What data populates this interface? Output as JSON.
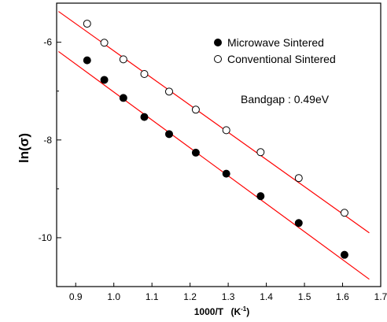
{
  "chart_data": {
    "type": "scatter",
    "xlabel": "1000/T",
    "xlabel_unit_base": "(K",
    "xlabel_unit_sup": "-1",
    "xlabel_unit_close": ")",
    "ylabel": "ln(σ)",
    "xlim": [
      0.85,
      1.7
    ],
    "ylim": [
      -11.0,
      -5.2
    ],
    "x_ticks": [
      0.9,
      1.0,
      1.1,
      1.2,
      1.3,
      1.4,
      1.5,
      1.6,
      1.7
    ],
    "x_tick_labels": [
      "0.9",
      "1.0",
      "1.1",
      "1.2",
      "1.3",
      "1.4",
      "1.5",
      "1.6",
      "1.7"
    ],
    "y_ticks": [
      -10,
      -8,
      -6
    ],
    "y_tick_labels": [
      "-10",
      "-8",
      "-6"
    ],
    "y_minor_ticks": [
      -11,
      -9,
      -7
    ],
    "grid": false,
    "legend_position": "top-right",
    "series": [
      {
        "name": "Microwave Sintered",
        "marker": "filled-circle",
        "x": [
          0.93,
          0.975,
          1.025,
          1.08,
          1.145,
          1.215,
          1.295,
          1.385,
          1.485,
          1.605
        ],
        "y": [
          -6.37,
          -6.77,
          -7.14,
          -7.53,
          -7.88,
          -8.26,
          -8.69,
          -9.15,
          -9.7,
          -10.35
        ]
      },
      {
        "name": "Conventional Sintered",
        "marker": "open-circle",
        "x": [
          0.93,
          0.975,
          1.025,
          1.08,
          1.145,
          1.215,
          1.295,
          1.385,
          1.485,
          1.605
        ],
        "y": [
          -5.62,
          -6.01,
          -6.35,
          -6.65,
          -7.01,
          -7.38,
          -7.8,
          -8.25,
          -8.78,
          -9.49
        ]
      }
    ],
    "fit_lines": [
      {
        "series": "Microwave Sintered",
        "color": "#ff0000",
        "x": [
          0.855,
          1.67
        ],
        "y": [
          -6.19,
          -10.85
        ]
      },
      {
        "series": "Conventional Sintered",
        "color": "#ff0000",
        "x": [
          0.855,
          1.67
        ],
        "y": [
          -5.37,
          -9.9
        ]
      }
    ],
    "annotation": "Bandgap : 0.49eV"
  }
}
